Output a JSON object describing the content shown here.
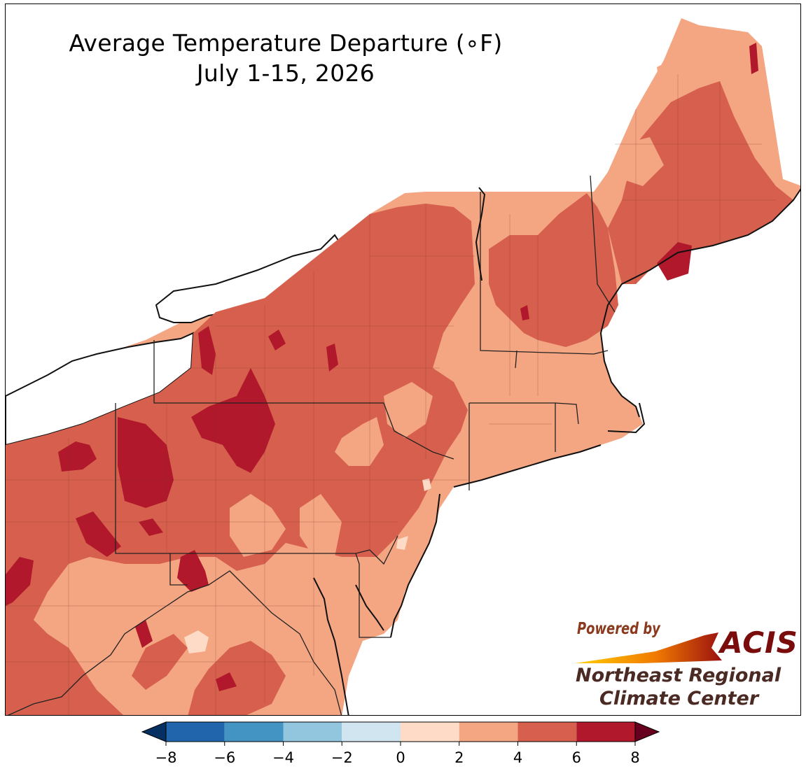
{
  "title": {
    "line1": "Average Temperature Departure (∘F)",
    "line2": "July 1-15, 2026"
  },
  "logo": {
    "powered_by": "Powered by",
    "acis": "ACIS",
    "org_line1": "Northeast Regional",
    "org_line2": "Climate Center"
  },
  "legend": {
    "ticks": [
      "−8",
      "−6",
      "−4",
      "−2",
      "0",
      "2",
      "4",
      "6",
      "8"
    ],
    "bins": [
      {
        "from": -8,
        "to": -6,
        "color": "#2166ac"
      },
      {
        "from": -6,
        "to": -4,
        "color": "#4393c3"
      },
      {
        "from": -4,
        "to": -2,
        "color": "#92c5de"
      },
      {
        "from": -2,
        "to": 0,
        "color": "#d1e5f0"
      },
      {
        "from": 0,
        "to": 2,
        "color": "#fddbc7"
      },
      {
        "from": 2,
        "to": 4,
        "color": "#f4a582"
      },
      {
        "from": 4,
        "to": 6,
        "color": "#d6604d"
      },
      {
        "from": 6,
        "to": 8,
        "color": "#b2182b"
      }
    ],
    "under_color": "#053061",
    "over_color": "#67001f"
  },
  "colors": {
    "water": "#ffffff",
    "light": "#f4a582",
    "medium": "#d6604d",
    "dark": "#b2182b",
    "pale": "#fddbc7"
  }
}
